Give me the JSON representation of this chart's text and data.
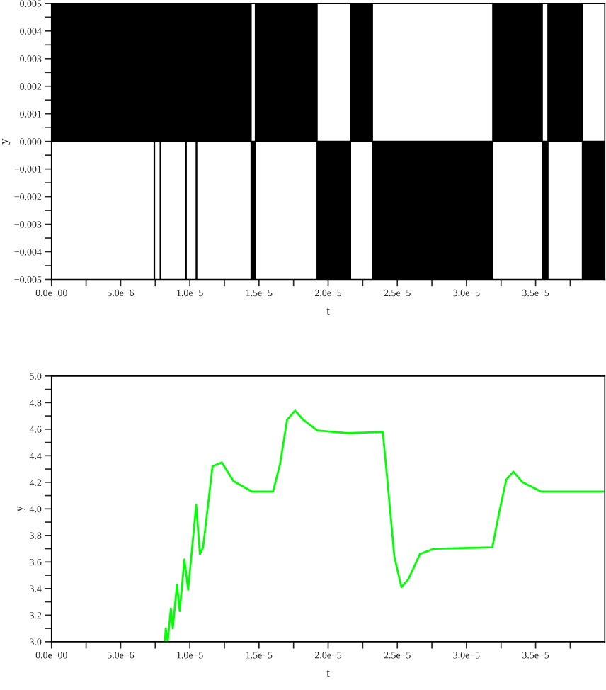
{
  "chart_data": [
    {
      "type": "area",
      "xlabel": "t",
      "ylabel": "y",
      "x": [
        0,
        7.42e-06,
        7.42e-06,
        7.45e-06,
        7.45e-06,
        7.86e-06,
        7.86e-06,
        7.89e-06,
        7.89e-06,
        9.71e-06,
        9.71e-06,
        9.74e-06,
        9.74e-06,
        1.046e-05,
        1.046e-05,
        1.05e-05,
        1.05e-05,
        1.443e-05,
        1.443e-05,
        1.474e-05,
        1.474e-05,
        1.92e-05,
        1.92e-05,
        2.162e-05,
        2.162e-05,
        2.32e-05,
        2.32e-05,
        3.19e-05,
        3.19e-05,
        3.548e-05,
        3.548e-05,
        3.589e-05,
        3.589e-05,
        3.838e-05,
        3.838e-05,
        4e-05
      ],
      "series": [
        {
          "color": "#000000",
          "values": [
            0.005,
            0.005,
            -0.005,
            -0.005,
            0.005,
            0.005,
            -0.005,
            -0.005,
            0.005,
            0.005,
            -0.005,
            -0.005,
            0.005,
            0.005,
            -0.005,
            -0.005,
            0.005,
            0.005,
            -0.005,
            -0.005,
            0.005,
            0.005,
            -0.005,
            -0.005,
            0.005,
            0.005,
            -0.005,
            -0.005,
            0.005,
            0.005,
            -0.005,
            -0.005,
            0.005,
            0.005,
            -0.005,
            -0.005
          ]
        }
      ],
      "xlim": [
        0,
        4e-05
      ],
      "xticks": [
        {
          "value": 0,
          "label": "0.0e+00"
        },
        {
          "value": 2.5e-06,
          "label": null
        },
        {
          "value": 5e-06,
          "label": "5.0e−6"
        },
        {
          "value": 7.5e-06,
          "label": null
        },
        {
          "value": 1e-05,
          "label": "1.0e−5"
        },
        {
          "value": 1.25e-05,
          "label": null
        },
        {
          "value": 1.5e-05,
          "label": "1.5e−5"
        },
        {
          "value": 1.75e-05,
          "label": null
        },
        {
          "value": 2e-05,
          "label": "2.0e−5"
        },
        {
          "value": 2.25e-05,
          "label": null
        },
        {
          "value": 2.5e-05,
          "label": "2.5e−5"
        },
        {
          "value": 2.75e-05,
          "label": null
        },
        {
          "value": 3e-05,
          "label": "3.0e−5"
        },
        {
          "value": 3.25e-05,
          "label": null
        },
        {
          "value": 3.5e-05,
          "label": "3.5e−5"
        },
        {
          "value": 3.75e-05,
          "label": null
        }
      ],
      "ylim": [
        -0.005,
        0.005
      ],
      "yticks": [
        {
          "value": -0.005,
          "label": "−0.005"
        },
        {
          "value": -0.0045,
          "label": null
        },
        {
          "value": -0.004,
          "label": "−0.004"
        },
        {
          "value": -0.0035,
          "label": null
        },
        {
          "value": -0.003,
          "label": "−0.003"
        },
        {
          "value": -0.0025,
          "label": null
        },
        {
          "value": -0.002,
          "label": "−0.002"
        },
        {
          "value": -0.0015,
          "label": null
        },
        {
          "value": -0.001,
          "label": "−0.001"
        },
        {
          "value": -0.0005,
          "label": null
        },
        {
          "value": 0,
          "label": "0.000"
        },
        {
          "value": 0.0005,
          "label": null
        },
        {
          "value": 0.001,
          "label": "0.001"
        },
        {
          "value": 0.0015,
          "label": null
        },
        {
          "value": 0.002,
          "label": "0.002"
        },
        {
          "value": 0.0025,
          "label": null
        },
        {
          "value": 0.003,
          "label": "0.003"
        },
        {
          "value": 0.0035,
          "label": null
        },
        {
          "value": 0.004,
          "label": "0.004"
        },
        {
          "value": 0.0045,
          "label": null
        },
        {
          "value": 0.005,
          "label": "0.005"
        }
      ]
    },
    {
      "type": "line",
      "xlabel": "t",
      "ylabel": "y",
      "x": [
        8.2e-06,
        8.26e-06,
        8.4e-06,
        8.63e-06,
        8.77e-06,
        9.07e-06,
        9.27e-06,
        9.61e-06,
        9.88e-06,
        1.046e-05,
        1.073e-05,
        1.096e-05,
        1.164e-05,
        1.231e-05,
        1.315e-05,
        1.45e-05,
        1.602e-05,
        1.653e-05,
        1.703e-05,
        1.761e-05,
        1.821e-05,
        1.922e-05,
        2.142e-05,
        2.395e-05,
        2.428e-05,
        2.479e-05,
        2.53e-05,
        2.58e-05,
        2.664e-05,
        2.766e-05,
        3.187e-05,
        3.238e-05,
        3.288e-05,
        3.339e-05,
        3.406e-05,
        3.541e-05,
        3.99e-05
      ],
      "series": [
        {
          "color": "#00ff00",
          "values": [
            3.0,
            3.1,
            3.0,
            3.25,
            3.1,
            3.43,
            3.23,
            3.62,
            3.39,
            4.03,
            3.66,
            3.71,
            4.32,
            4.35,
            4.21,
            4.13,
            4.13,
            4.34,
            4.67,
            4.74,
            4.67,
            4.59,
            4.57,
            4.58,
            4.22,
            3.64,
            3.41,
            3.47,
            3.66,
            3.7,
            3.71,
            3.98,
            4.22,
            4.28,
            4.2,
            4.13,
            4.13
          ]
        }
      ],
      "xlim": [
        0,
        4e-05
      ],
      "xticks": [
        {
          "value": 0,
          "label": "0.0e+00"
        },
        {
          "value": 2.5e-06,
          "label": null
        },
        {
          "value": 5e-06,
          "label": "5.0e−6"
        },
        {
          "value": 7.5e-06,
          "label": null
        },
        {
          "value": 1e-05,
          "label": "1.0e−5"
        },
        {
          "value": 1.25e-05,
          "label": null
        },
        {
          "value": 1.5e-05,
          "label": "1.5e−5"
        },
        {
          "value": 1.75e-05,
          "label": null
        },
        {
          "value": 2e-05,
          "label": "2.0e−5"
        },
        {
          "value": 2.25e-05,
          "label": null
        },
        {
          "value": 2.5e-05,
          "label": "2.5e−5"
        },
        {
          "value": 2.75e-05,
          "label": null
        },
        {
          "value": 3e-05,
          "label": "3.0e−5"
        },
        {
          "value": 3.25e-05,
          "label": null
        },
        {
          "value": 3.5e-05,
          "label": "3.5e−5"
        },
        {
          "value": 3.75e-05,
          "label": null
        }
      ],
      "ylim": [
        3.0,
        5.0
      ],
      "yticks": [
        {
          "value": 3.0,
          "label": "3.0"
        },
        {
          "value": 3.1,
          "label": null
        },
        {
          "value": 3.2,
          "label": "3.2"
        },
        {
          "value": 3.3,
          "label": null
        },
        {
          "value": 3.4,
          "label": "3.4"
        },
        {
          "value": 3.5,
          "label": null
        },
        {
          "value": 3.6,
          "label": "3.6"
        },
        {
          "value": 3.7,
          "label": null
        },
        {
          "value": 3.8,
          "label": "3.8"
        },
        {
          "value": 3.9,
          "label": null
        },
        {
          "value": 4.0,
          "label": "4.0"
        },
        {
          "value": 4.1,
          "label": null
        },
        {
          "value": 4.2,
          "label": "4.2"
        },
        {
          "value": 4.3,
          "label": null
        },
        {
          "value": 4.4,
          "label": "4.4"
        },
        {
          "value": 4.5,
          "label": null
        },
        {
          "value": 4.6,
          "label": "4.6"
        },
        {
          "value": 4.7,
          "label": null
        },
        {
          "value": 4.8,
          "label": "4.8"
        },
        {
          "value": 4.9,
          "label": null
        },
        {
          "value": 5.0,
          "label": "5.0"
        }
      ]
    }
  ]
}
